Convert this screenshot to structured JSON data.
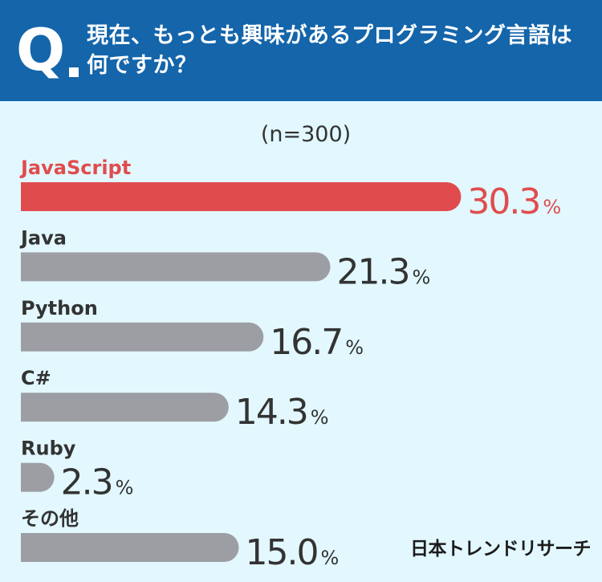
{
  "header": {
    "q_label": "Q",
    "question": "現在、もっとも興味があるプログラミング言語は何ですか？"
  },
  "sample_size": "(n=300)",
  "brand": "日本トレンドリサーチ",
  "colors": {
    "header_bg": "#1465aa",
    "page_bg": "#e2f8fe",
    "highlight": "#e04c4e",
    "bar_gray": "#9d9ea3",
    "value_dark": "#333333"
  },
  "chart_data": {
    "type": "bar",
    "orientation": "horizontal",
    "unit": "%",
    "categories": [
      "JavaScript",
      "Java",
      "Python",
      "C#",
      "Ruby",
      "その他"
    ],
    "values": [
      30.3,
      21.3,
      16.7,
      14.3,
      2.3,
      15.0
    ],
    "value_labels": [
      "30.3",
      "21.3",
      "16.7",
      "14.3",
      "2.3",
      "15.0"
    ],
    "highlight_index": 0
  }
}
